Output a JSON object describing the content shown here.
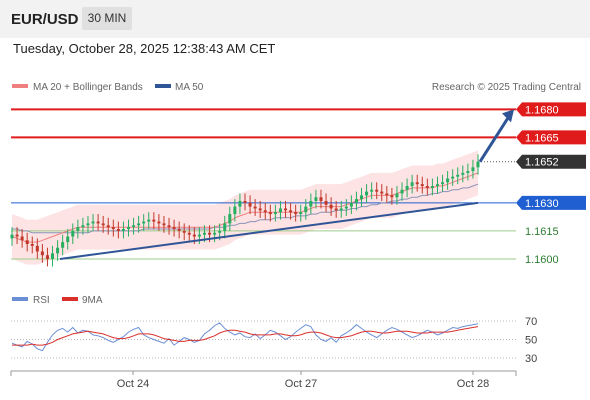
{
  "header": {
    "symbol": "EUR/USD",
    "timeframe": "30 MIN",
    "datetime": "Tuesday, October 28, 2025 12:38:43 AM CET"
  },
  "legend": {
    "ma20_label": "MA 20 + Bollinger Bands",
    "ma50_label": "MA 50",
    "credit": "Research © 2025 Trading Central",
    "rsi_label": "RSI",
    "rsi_ma_label": "9MA"
  },
  "colors": {
    "bull": "#27ae60",
    "bear": "#c0392b",
    "ma20": "#f08080",
    "band": "#fde3e3",
    "ma50": "#2f5597",
    "resistance": "#e01b1b",
    "support": "#1f5fd1",
    "rsi": "#6b8fd6",
    "rsi_ma": "#d9302c"
  },
  "chart_data": {
    "type": "candlestick",
    "symbol": "EUR/USD",
    "interval": "30 MIN",
    "x_ticks": [
      "Oct 24",
      "Oct 27",
      "Oct 28"
    ],
    "ylim": [
      1.1585,
      1.1685
    ],
    "levels": [
      {
        "value": 1.168,
        "label": "1.1680",
        "kind": "resistance"
      },
      {
        "value": 1.1665,
        "label": "1.1665",
        "kind": "resistance"
      },
      {
        "value": 1.1652,
        "label": "1.1652",
        "kind": "last-price"
      },
      {
        "value": 1.163,
        "label": "1.1630",
        "kind": "pivot"
      },
      {
        "value": 1.1615,
        "label": "1.1615",
        "kind": "support"
      },
      {
        "value": 1.16,
        "label": "1.1600",
        "kind": "support"
      }
    ],
    "trendline": {
      "from": 1.16,
      "to": 1.163
    },
    "forecast_arrow": {
      "from": 1.1652,
      "to": 1.168
    },
    "close": [
      1.1613,
      1.1612,
      1.161,
      1.1608,
      1.1607,
      1.1604,
      1.1602,
      1.16,
      1.1603,
      1.1606,
      1.1609,
      1.1612,
      1.1615,
      1.1617,
      1.1618,
      1.1619,
      1.162,
      1.1619,
      1.1618,
      1.1617,
      1.1616,
      1.1615,
      1.1616,
      1.1617,
      1.1618,
      1.1619,
      1.162,
      1.1621,
      1.162,
      1.1619,
      1.1618,
      1.1617,
      1.1616,
      1.1615,
      1.1614,
      1.1613,
      1.1612,
      1.1613,
      1.1614,
      1.1613,
      1.1614,
      1.1615,
      1.1619,
      1.1624,
      1.1628,
      1.1631,
      1.163,
      1.1628,
      1.1627,
      1.1626,
      1.1625,
      1.1624,
      1.1625,
      1.1627,
      1.1626,
      1.1625,
      1.1624,
      1.1625,
      1.1628,
      1.1631,
      1.1633,
      1.1631,
      1.1629,
      1.1627,
      1.1626,
      1.1627,
      1.1628,
      1.163,
      1.1632,
      1.1634,
      1.1636,
      1.1637,
      1.1636,
      1.1635,
      1.1634,
      1.1633,
      1.1635,
      1.1637,
      1.1639,
      1.1641,
      1.164,
      1.1639,
      1.1638,
      1.1639,
      1.164,
      1.1641,
      1.1643,
      1.1644,
      1.1645,
      1.1646,
      1.1647,
      1.1649,
      1.1652
    ],
    "ma20": [
      1.1612,
      1.1611,
      1.161,
      1.1609,
      1.1609,
      1.1609,
      1.161,
      1.1611,
      1.1612,
      1.1613,
      1.1614,
      1.1615,
      1.1616,
      1.1617,
      1.1617,
      1.1617,
      1.1617,
      1.1617,
      1.1617,
      1.1617,
      1.1617,
      1.1617,
      1.1617,
      1.1617,
      1.1617,
      1.1617,
      1.1617,
      1.1617,
      1.1617,
      1.1617,
      1.1617,
      1.1617,
      1.1617,
      1.1617,
      1.1617,
      1.1617,
      1.1617,
      1.1617,
      1.1617,
      1.1617,
      1.1617,
      1.1618,
      1.1619,
      1.162,
      1.1622,
      1.1623,
      1.1624,
      1.1625,
      1.1625,
      1.1625,
      1.1625,
      1.1625,
      1.1625,
      1.1625,
      1.1625,
      1.1625,
      1.1625,
      1.1625,
      1.1626,
      1.1627,
      1.1628,
      1.1628,
      1.1628,
      1.1628,
      1.1628,
      1.1628,
      1.1629,
      1.163,
      1.1631,
      1.1632,
      1.1633,
      1.1634,
      1.1634,
      1.1634,
      1.1634,
      1.1634,
      1.1635,
      1.1636,
      1.1637,
      1.1638,
      1.1638,
      1.1638,
      1.1638,
      1.1638,
      1.1639,
      1.1639,
      1.164,
      1.1641,
      1.1642,
      1.1643,
      1.1644,
      1.1645,
      1.1646
    ],
    "ma50": [
      1.1616,
      1.1616,
      1.1615,
      1.1615,
      1.1614,
      1.1614,
      1.1614,
      1.1614,
      1.1614,
      1.1614,
      1.1614,
      1.1614,
      1.1614,
      1.1614,
      1.1614,
      1.1614,
      1.1615,
      1.1615,
      1.1615,
      1.1615,
      1.1615,
      1.1615,
      1.1615,
      1.1615,
      1.1615,
      1.1615,
      1.1616,
      1.1616,
      1.1616,
      1.1616,
      1.1616,
      1.1616,
      1.1616,
      1.1616,
      1.1616,
      1.1616,
      1.1616,
      1.1616,
      1.1616,
      1.1616,
      1.1617,
      1.1617,
      1.1617,
      1.1618,
      1.1618,
      1.1619,
      1.1619,
      1.162,
      1.162,
      1.1621,
      1.1621,
      1.1621,
      1.1622,
      1.1622,
      1.1622,
      1.1622,
      1.1623,
      1.1623,
      1.1623,
      1.1624,
      1.1624,
      1.1625,
      1.1625,
      1.1625,
      1.1626,
      1.1626,
      1.1626,
      1.1627,
      1.1627,
      1.1628,
      1.1628,
      1.1629,
      1.1629,
      1.163,
      1.163,
      1.1631,
      1.1631,
      1.1632,
      1.1632,
      1.1633,
      1.1633,
      1.1634,
      1.1634,
      1.1635,
      1.1635,
      1.1636,
      1.1636,
      1.1637,
      1.1637,
      1.1638,
      1.1638,
      1.1639,
      1.164
    ],
    "rsi_levels": [
      70,
      50,
      30
    ],
    "rsi": [
      46,
      44,
      42,
      48,
      45,
      40,
      38,
      47,
      55,
      60,
      62,
      58,
      63,
      57,
      60,
      59,
      55,
      54,
      52,
      49,
      47,
      50,
      53,
      58,
      61,
      63,
      55,
      52,
      50,
      48,
      46,
      51,
      44,
      48,
      52,
      50,
      47,
      49,
      56,
      60,
      65,
      68,
      62,
      58,
      55,
      57,
      53,
      52,
      56,
      51,
      55,
      60,
      58,
      54,
      50,
      53,
      58,
      62,
      66,
      64,
      55,
      50,
      48,
      52,
      47,
      54,
      57,
      61,
      66,
      62,
      58,
      55,
      52,
      56,
      60,
      63,
      61,
      58,
      55,
      52,
      54,
      57,
      60,
      58,
      55,
      57,
      60,
      63,
      62,
      64,
      65,
      66,
      67
    ],
    "rsi_ma": [
      44,
      44,
      44,
      44,
      45,
      44,
      44,
      45,
      47,
      50,
      52,
      54,
      56,
      57,
      58,
      59,
      58,
      57,
      56,
      54,
      52,
      51,
      51,
      52,
      54,
      56,
      56,
      56,
      55,
      53,
      51,
      50,
      49,
      48,
      48,
      49,
      49,
      49,
      50,
      52,
      54,
      57,
      59,
      60,
      60,
      59,
      58,
      56,
      55,
      55,
      55,
      55,
      56,
      56,
      55,
      54,
      54,
      55,
      57,
      58,
      58,
      57,
      55,
      53,
      52,
      52,
      53,
      54,
      56,
      58,
      59,
      59,
      58,
      57,
      57,
      58,
      59,
      59,
      59,
      58,
      57,
      57,
      57,
      58,
      58,
      58,
      58,
      59,
      60,
      61,
      62,
      63,
      64
    ]
  }
}
